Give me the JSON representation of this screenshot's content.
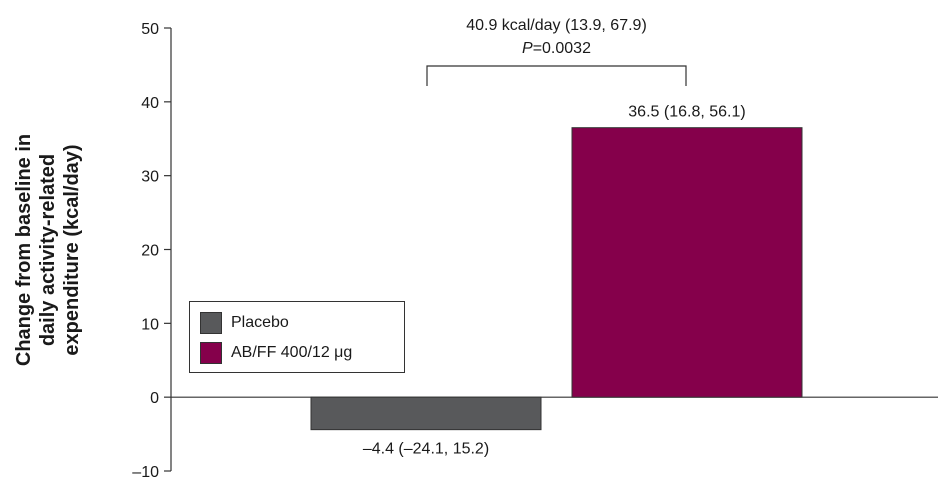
{
  "chart_data": {
    "type": "bar",
    "ylabel_lines": [
      "Change from baseline in",
      "daily activity-related",
      "expenditure (kcal/day)"
    ],
    "ylim": [
      -10,
      50
    ],
    "yticks": [
      50,
      40,
      30,
      20,
      10,
      0,
      -10
    ],
    "ytick_labels": [
      "50",
      "40",
      "30",
      "20",
      "10",
      "0",
      "–10"
    ],
    "grid": false,
    "legend_position": "left-middle",
    "series": [
      {
        "name": "Placebo",
        "value": -4.4,
        "color": "#58595b",
        "label": "–4.4 (–24.1, 15.2)"
      },
      {
        "name": "AB/FF 400/12 μg",
        "value": 36.5,
        "color": "#85004b",
        "label": "36.5 (16.8, 56.1)"
      }
    ],
    "comparison": {
      "line1": "40.9 kcal/day (13.9, 67.9)",
      "p_italic": "P",
      "p_rest": "=0.0032"
    }
  }
}
